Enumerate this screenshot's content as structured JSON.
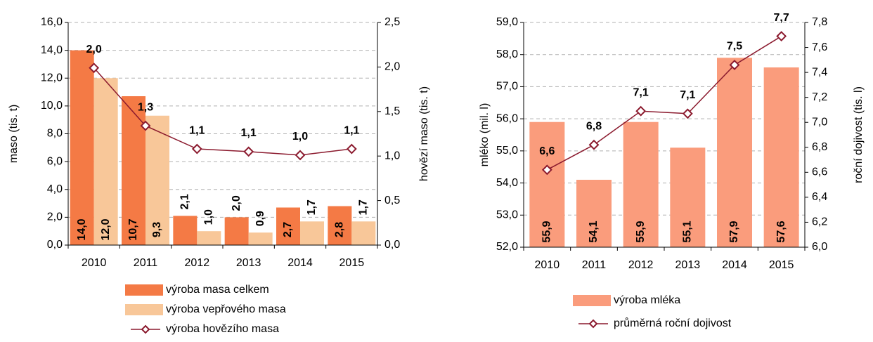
{
  "chart_data": [
    {
      "type": "bar",
      "categories": [
        "2010",
        "2011",
        "2012",
        "2013",
        "2014",
        "2015"
      ],
      "y_label": "maso (tis. t)",
      "y2_label": "hovězí maso (tis. t)",
      "ylim": [
        0,
        16
      ],
      "yticks": [
        {
          "value": 0,
          "label": "0,0"
        },
        {
          "value": 2,
          "label": "2,0"
        },
        {
          "value": 4,
          "label": "4,0"
        },
        {
          "value": 6,
          "label": "6,0"
        },
        {
          "value": 8,
          "label": "8,0"
        },
        {
          "value": 10,
          "label": "10,0"
        },
        {
          "value": 12,
          "label": "12,0"
        },
        {
          "value": 14,
          "label": "14,0"
        },
        {
          "value": 16,
          "label": "16,0"
        }
      ],
      "y2lim": [
        0,
        2.5
      ],
      "y2ticks": [
        {
          "value": 0,
          "label": "0,0"
        },
        {
          "value": 0.5,
          "label": "0,5"
        },
        {
          "value": 1,
          "label": "1,0"
        },
        {
          "value": 1.5,
          "label": "1,5"
        },
        {
          "value": 2,
          "label": "2,0"
        },
        {
          "value": 2.5,
          "label": "2,5"
        }
      ],
      "grid": true,
      "series": [
        {
          "name": "výroba masa celkem",
          "color": "#f47a45",
          "values": [
            14.0,
            10.7,
            2.1,
            2.0,
            2.7,
            2.8
          ],
          "value_labels": [
            "14,0",
            "10,7",
            "2,1",
            "2,0",
            "2,7",
            "2,8"
          ]
        },
        {
          "name": "výroba vepřového masa",
          "color": "#f8c799",
          "values": [
            12.0,
            9.3,
            1.0,
            0.9,
            1.7,
            1.7
          ],
          "value_labels": [
            "12,0",
            "9,3",
            "1,0",
            "0,9",
            "1,7",
            "1,7"
          ]
        },
        {
          "name": "výroba hovězího masa",
          "type": "line",
          "axis": "y2",
          "color": "#8b1a2e",
          "values": [
            1.99,
            1.34,
            1.08,
            1.05,
            1.01,
            1.08
          ],
          "value_labels": [
            "2,0",
            "1,3",
            "1,1",
            "1,1",
            "1,0",
            "1,1"
          ]
        }
      ]
    },
    {
      "type": "bar",
      "categories": [
        "2010",
        "2011",
        "2012",
        "2013",
        "2014",
        "2015"
      ],
      "y_label": "mléko (mil. l)",
      "y2_label": "roční dojivost (tis. l)",
      "ylim": [
        52,
        59
      ],
      "yticks": [
        {
          "value": 52,
          "label": "52,0"
        },
        {
          "value": 53,
          "label": "53,0"
        },
        {
          "value": 54,
          "label": "54,0"
        },
        {
          "value": 55,
          "label": "55,0"
        },
        {
          "value": 56,
          "label": "56,0"
        },
        {
          "value": 57,
          "label": "57,0"
        },
        {
          "value": 58,
          "label": "58,0"
        },
        {
          "value": 59,
          "label": "59,0"
        }
      ],
      "y2lim": [
        6.0,
        7.8
      ],
      "y2ticks": [
        {
          "value": 6.0,
          "label": "6,0"
        },
        {
          "value": 6.2,
          "label": "6,2"
        },
        {
          "value": 6.4,
          "label": "6,4"
        },
        {
          "value": 6.6,
          "label": "6,6"
        },
        {
          "value": 6.8,
          "label": "6,8"
        },
        {
          "value": 7.0,
          "label": "7,0"
        },
        {
          "value": 7.2,
          "label": "7,2"
        },
        {
          "value": 7.4,
          "label": "7,4"
        },
        {
          "value": 7.6,
          "label": "7,6"
        },
        {
          "value": 7.8,
          "label": "7,8"
        }
      ],
      "grid": true,
      "series": [
        {
          "name": "výroba mléka",
          "color": "#fa9c7c",
          "values": [
            55.9,
            54.1,
            55.9,
            55.1,
            57.9,
            57.6
          ],
          "value_labels": [
            "55,9",
            "54,1",
            "55,9",
            "55,1",
            "57,9",
            "57,6"
          ]
        },
        {
          "name": "průměrná roční dojivost",
          "type": "line",
          "axis": "y2",
          "color": "#8b1a2e",
          "values": [
            6.62,
            6.82,
            7.09,
            7.07,
            7.46,
            7.69
          ],
          "value_labels": [
            "6,6",
            "6,8",
            "7,1",
            "7,1",
            "7,5",
            "7,7"
          ]
        }
      ]
    }
  ]
}
